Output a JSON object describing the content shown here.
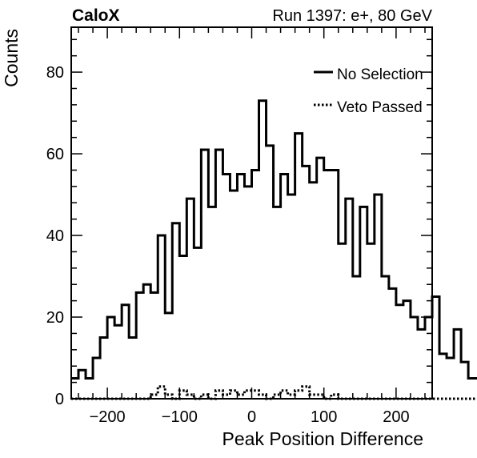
{
  "chart_data": {
    "type": "histogram-step",
    "header_left": "CaloX",
    "header_right": "Run 1397: e+, 80 GeV",
    "xlabel": "Peak Position Difference",
    "ylabel": "Counts",
    "xlim": [
      -250,
      250
    ],
    "ylim": [
      0,
      91
    ],
    "x_ticks": [
      -200,
      -100,
      0,
      100,
      200
    ],
    "x_tick_labels": [
      "−200",
      "−100",
      "0",
      "100",
      "200"
    ],
    "y_ticks": [
      0,
      20,
      40,
      60,
      80
    ],
    "y_tick_labels": [
      "0",
      "20",
      "40",
      "60",
      "80"
    ],
    "bin_width": 10,
    "legend_position": "top-right",
    "series": [
      {
        "name": "No Selection",
        "style": "solid",
        "bin_edges_start": -250,
        "values": [
          5,
          7,
          5,
          10,
          15,
          20,
          18,
          23,
          15,
          26,
          28,
          26,
          40,
          21,
          43,
          35,
          49,
          37,
          61,
          47,
          61,
          55,
          51,
          55,
          52,
          56,
          73,
          62,
          47,
          55,
          50,
          65,
          57,
          53,
          59,
          56,
          56,
          38,
          49,
          30,
          47,
          38,
          50,
          30,
          27,
          23,
          24,
          20,
          17,
          20,
          25,
          11,
          10,
          17,
          9,
          5,
          5,
          6,
          0
        ]
      },
      {
        "name": "Veto Passed",
        "style": "dotted",
        "bin_edges_start": -250,
        "values": [
          0,
          0,
          0,
          0,
          0,
          0,
          0,
          0,
          0,
          0,
          0,
          1,
          3,
          1,
          0,
          2,
          1,
          0,
          1,
          0,
          2,
          1,
          2,
          1,
          2,
          2,
          1,
          0,
          1,
          2,
          1,
          2,
          3,
          1,
          1,
          0,
          1,
          0,
          0,
          0,
          0,
          0,
          0,
          0,
          0,
          0,
          0,
          0,
          0,
          0,
          0,
          0,
          0,
          0,
          0,
          0,
          0,
          0,
          0
        ]
      }
    ]
  },
  "colors": {
    "line": "#000000",
    "background": "#ffffff"
  }
}
